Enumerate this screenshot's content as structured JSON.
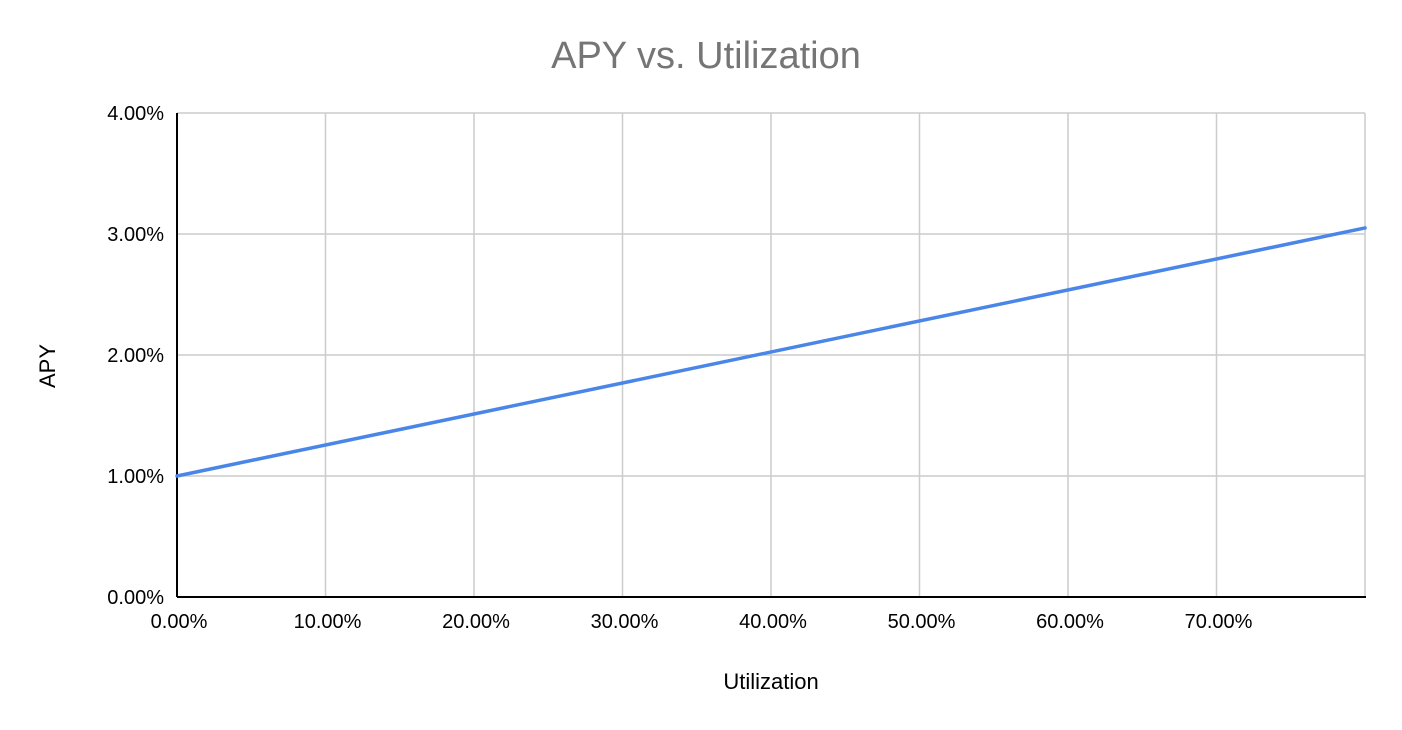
{
  "chart_data": {
    "type": "line",
    "title": "APY vs. Utilization",
    "xlabel": "Utilization",
    "ylabel": "APY",
    "x_tick_labels": [
      "0.00%",
      "10.00%",
      "20.00%",
      "30.00%",
      "40.00%",
      "50.00%",
      "60.00%",
      "70.00%"
    ],
    "y_tick_labels": [
      "0.00%",
      "1.00%",
      "2.00%",
      "3.00%",
      "4.00%"
    ],
    "xlim": [
      0,
      80
    ],
    "ylim": [
      0,
      4
    ],
    "x_ticks": [
      0,
      10,
      20,
      30,
      40,
      50,
      60,
      70
    ],
    "y_ticks": [
      0,
      1,
      2,
      3,
      4
    ],
    "grid": true,
    "legend": "none",
    "series": [
      {
        "color": "#4a86e8",
        "x": [
          0,
          80
        ],
        "y": [
          1.0,
          3.05
        ]
      }
    ]
  }
}
